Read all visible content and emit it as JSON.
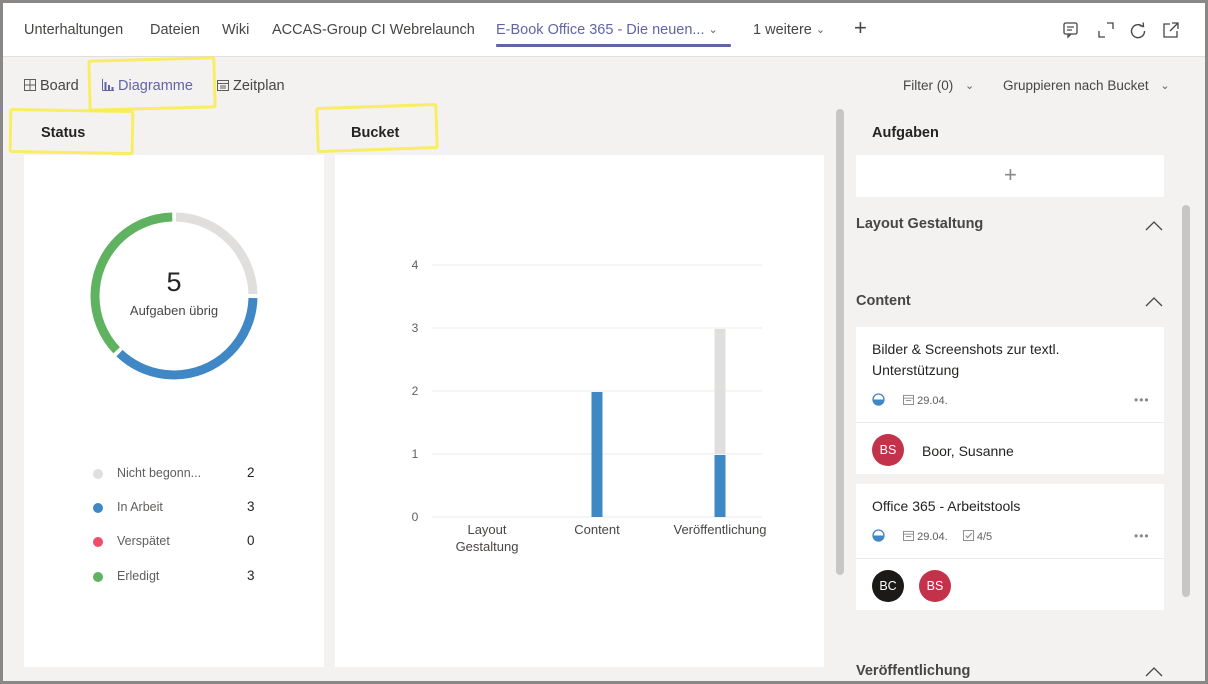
{
  "tabs": [
    {
      "label": "Unterhaltungen"
    },
    {
      "label": "Dateien"
    },
    {
      "label": "Wiki"
    },
    {
      "label": "ACCAS-Group CI Webrelaunch"
    },
    {
      "label": "E-Book Office 365 - Die neuen..."
    },
    {
      "label": "1 weitere"
    }
  ],
  "views": {
    "board": "Board",
    "charts": "Diagramme",
    "schedule": "Zeitplan",
    "filter": "Filter (0)",
    "group": "Gruppieren nach Bucket"
  },
  "status_panel": {
    "title": "Status",
    "remaining_count": "5",
    "remaining_label": "Aufgaben übrig",
    "legend": [
      {
        "label": "Nicht begonn...",
        "value": "2",
        "color": "#e1dfdd"
      },
      {
        "label": "In Arbeit",
        "value": "3",
        "color": "#3f88c5"
      },
      {
        "label": "Verspätet",
        "value": "0",
        "color": "#ef4d6a"
      },
      {
        "label": "Erledigt",
        "value": "3",
        "color": "#5fb25f"
      }
    ]
  },
  "bucket_panel": {
    "title": "Bucket"
  },
  "chart_data": {
    "type": "bar",
    "title": "Bucket",
    "categories": [
      "Layout\nGestaltung",
      "Content",
      "Veröffentlichung"
    ],
    "series": [
      {
        "name": "In Arbeit",
        "values": [
          0,
          2,
          1
        ],
        "color": "#3f88c5"
      },
      {
        "name": "Nicht begonn...",
        "values": [
          0,
          0,
          2
        ],
        "color": "#e1dfdd"
      }
    ],
    "stacked": true,
    "yticks": [
      "0",
      "1",
      "2",
      "3",
      "4"
    ],
    "ylim": [
      0,
      4
    ],
    "grid": true
  },
  "tasks_panel": {
    "title": "Aufgaben",
    "add_symbol": "+",
    "buckets": [
      {
        "title": "Layout Gestaltung"
      },
      {
        "title": "Content"
      },
      {
        "title": "Veröffentlichung"
      }
    ],
    "cards": [
      {
        "title": "Bilder & Screenshots zur textl. Unterstützung",
        "due": "29.04.",
        "more": "•••",
        "avatars": [
          {
            "initials": "BS",
            "color": "#c4314b"
          }
        ],
        "assignee": "Boor, Susanne"
      },
      {
        "title": "Office 365 - Arbeitstools",
        "due": "29.04.",
        "checklist": "4/5",
        "more": "•••",
        "avatars": [
          {
            "initials": "BC",
            "color": "#1b1a19"
          },
          {
            "initials": "BS",
            "color": "#c4314b"
          }
        ]
      }
    ]
  }
}
